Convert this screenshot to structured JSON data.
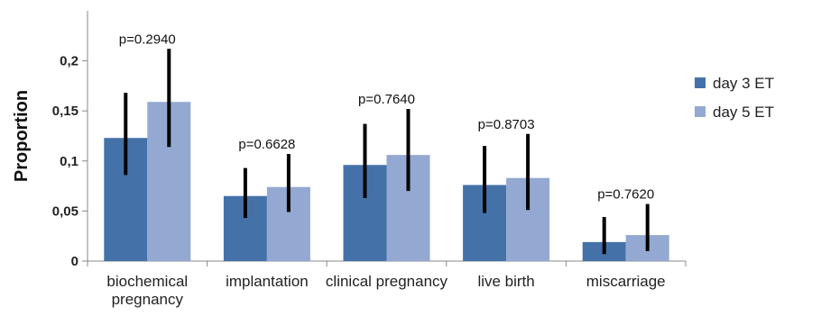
{
  "chart_data": {
    "type": "bar",
    "ylabel": "Proportion",
    "xlabel": "",
    "ylim": [
      0,
      0.25
    ],
    "yticks": [
      0,
      0.05,
      0.1,
      0.15,
      0.2
    ],
    "ytick_labels": [
      "0",
      "0,05",
      "0,1",
      "0,15",
      "0,2"
    ],
    "categories": [
      "biochemical pregnancy",
      "implantation",
      "clinical pregnancy",
      "live birth",
      "miscarriage"
    ],
    "category_label_lines": [
      [
        "biochemical",
        "pregnancy"
      ],
      [
        "implantation"
      ],
      [
        "clinical pregnancy"
      ],
      [
        "live birth"
      ],
      [
        "miscarriage"
      ]
    ],
    "p_values": [
      "p=0.2940",
      "p=0.6628",
      "p=0.7640",
      "p=0.8703",
      "p=0.7620"
    ],
    "series": [
      {
        "name": "day 3 ET",
        "color": "#4472a8",
        "values": [
          0.123,
          0.065,
          0.096,
          0.076,
          0.019
        ],
        "err_low": [
          0.086,
          0.043,
          0.063,
          0.048,
          0.007
        ],
        "err_high": [
          0.168,
          0.093,
          0.137,
          0.115,
          0.044
        ]
      },
      {
        "name": "day 5 ET",
        "color": "#93a9d2",
        "values": [
          0.159,
          0.074,
          0.106,
          0.083,
          0.026
        ],
        "err_low": [
          0.114,
          0.049,
          0.07,
          0.051,
          0.01
        ],
        "err_high": [
          0.212,
          0.107,
          0.152,
          0.127,
          0.057
        ]
      }
    ],
    "grid": false,
    "legend_position": "right"
  }
}
